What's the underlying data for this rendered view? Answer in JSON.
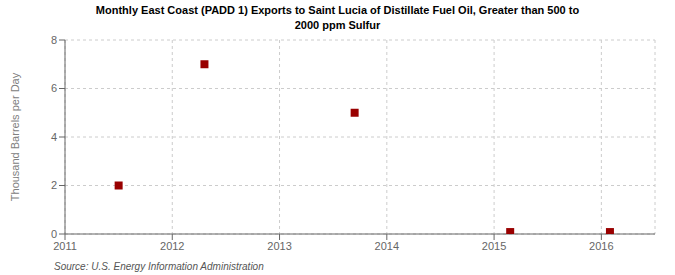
{
  "chart_data": {
    "type": "scatter",
    "title": "Monthly East Coast (PADD 1) Exports to Saint Lucia of Distillate Fuel Oil, Greater than 500 to\n2000 ppm Sulfur",
    "ylabel": "Thousand Barrels per Day",
    "source": "Source: U.S. Energy Information Administration",
    "x": [
      2011.5,
      2012.3,
      2013.7,
      2015.15,
      2016.08
    ],
    "values": [
      2.0,
      7.0,
      5.0,
      0.08,
      0.08
    ],
    "color": "#990000",
    "marker": "square",
    "xlim": [
      2011,
      2016.5
    ],
    "ylim": [
      0,
      8
    ],
    "xticks": [
      2011,
      2012,
      2013,
      2014,
      2015,
      2016
    ],
    "yticks": [
      0,
      2,
      4,
      6,
      8
    ],
    "grid": true
  }
}
